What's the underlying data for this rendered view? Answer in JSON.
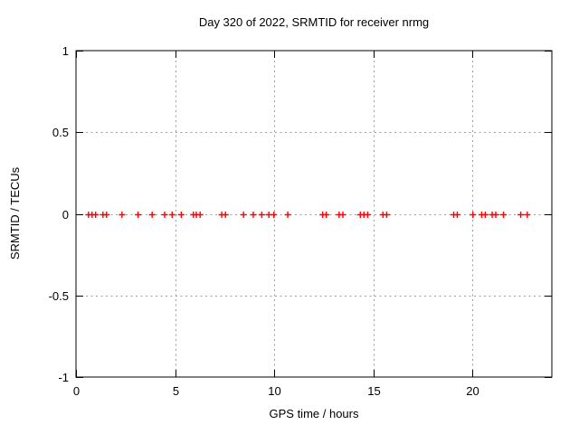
{
  "chart_data": {
    "type": "scatter",
    "title": "Day 320 of 2022, SRMTID for receiver nrmg",
    "xlabel": "GPS time / hours",
    "ylabel": "SRMTID / TECUs",
    "xlim": [
      0,
      24
    ],
    "ylim": [
      -1,
      1
    ],
    "xticks": [
      0,
      5,
      10,
      15,
      20
    ],
    "xtick_labels": [
      "0",
      "5",
      "10",
      "15",
      "20"
    ],
    "yticks": [
      1,
      0.5,
      0,
      -0.5,
      -1
    ],
    "ytick_labels": [
      "1",
      "0.5",
      "0",
      "-0.5",
      "-1"
    ],
    "grid": true,
    "legend_position": "none",
    "colors": {
      "marker": "#ff0000",
      "grid": "#9e9e9e",
      "axis": "#000000",
      "background": "#ffffff"
    },
    "series": [
      {
        "name": "SRMTID",
        "marker": "plus",
        "color": "#ff0000",
        "x": [
          0.63,
          0.81,
          0.99,
          1.36,
          1.54,
          2.32,
          3.13,
          3.84,
          4.47,
          4.85,
          5.31,
          5.92,
          6.07,
          6.26,
          7.35,
          7.54,
          8.45,
          8.94,
          9.37,
          9.73,
          9.98,
          10.68,
          12.44,
          12.62,
          13.27,
          13.46,
          14.34,
          14.52,
          14.71,
          15.48,
          15.67,
          19.05,
          19.23,
          20.02,
          20.46,
          20.64,
          20.99,
          21.17,
          21.56,
          22.43,
          22.76
        ],
        "y": [
          0,
          0,
          0,
          0,
          0,
          0,
          0,
          0,
          0,
          0,
          0,
          0,
          0,
          0,
          0,
          0,
          0,
          0,
          0,
          0,
          0,
          0,
          0,
          0,
          0,
          0,
          0,
          0,
          0,
          0,
          0,
          0,
          0,
          0,
          0,
          0,
          0,
          0,
          0,
          0,
          0
        ]
      }
    ]
  }
}
